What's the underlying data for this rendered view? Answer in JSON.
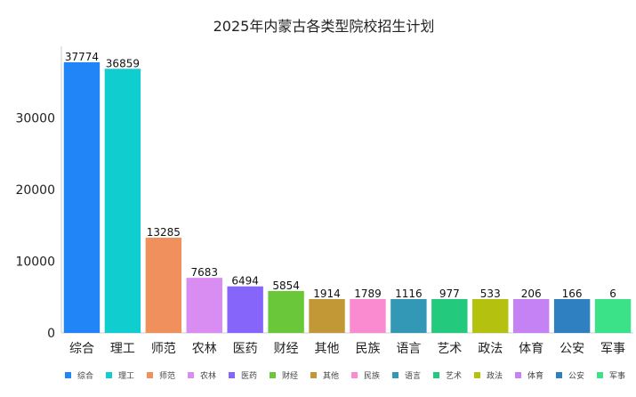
{
  "chart_data": {
    "type": "bar",
    "title": "2025年内蒙古各类型院校招生计划",
    "xlabel": "",
    "ylabel": "",
    "ylim": [
      0,
      40000
    ],
    "yticks": [
      0,
      10000,
      20000,
      30000
    ],
    "grid": false,
    "legend_position": "bottom",
    "categories": [
      "综合",
      "理工",
      "师范",
      "农林",
      "医药",
      "财经",
      "其他",
      "民族",
      "语言",
      "艺术",
      "政法",
      "体育",
      "公安",
      "军事"
    ],
    "values": [
      37774,
      36859,
      13285,
      7683,
      6494,
      5854,
      1914,
      1789,
      1116,
      977,
      533,
      206,
      166,
      6
    ],
    "colors": [
      "#2185f7",
      "#10cdd0",
      "#f0905c",
      "#d98cf2",
      "#8666fa",
      "#6bc73a",
      "#c29735",
      "#fb8bd1",
      "#3298b6",
      "#23c97c",
      "#b4c20f",
      "#c582f5",
      "#2f80c1",
      "#3be288"
    ]
  }
}
